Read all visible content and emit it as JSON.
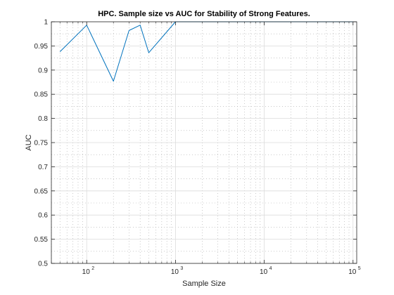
{
  "chart_data": {
    "type": "line",
    "title": "HPC. Sample size vs AUC for Stability of Strong Features.",
    "xlabel": "Sample Size",
    "ylabel": "AUC",
    "xscale": "log",
    "xlim": [
      40,
      110000
    ],
    "ylim": [
      0.5,
      1.0
    ],
    "grid": true,
    "minor_grid": true,
    "x_ticks": [
      {
        "base": "10",
        "exp": "2",
        "value": 100
      },
      {
        "base": "10",
        "exp": "3",
        "value": 1000
      },
      {
        "base": "10",
        "exp": "4",
        "value": 10000
      },
      {
        "base": "10",
        "exp": "5",
        "value": 100000
      }
    ],
    "y_ticks": [
      "0.5",
      "0.55",
      "0.6",
      "0.65",
      "0.7",
      "0.75",
      "0.8",
      "0.85",
      "0.9",
      "0.95",
      "1"
    ],
    "series": [
      {
        "color": "#0072BD",
        "x": [
          50,
          100,
          200,
          300,
          400,
          500,
          1000,
          2000,
          3000,
          4000,
          5000,
          10000,
          20000,
          50000,
          100000
        ],
        "y": [
          0.938,
          0.993,
          0.877,
          0.982,
          0.993,
          0.936,
          1.0,
          1.0,
          1.0,
          1.0,
          1.0,
          1.0,
          1.0,
          1.0,
          1.0
        ]
      }
    ]
  }
}
